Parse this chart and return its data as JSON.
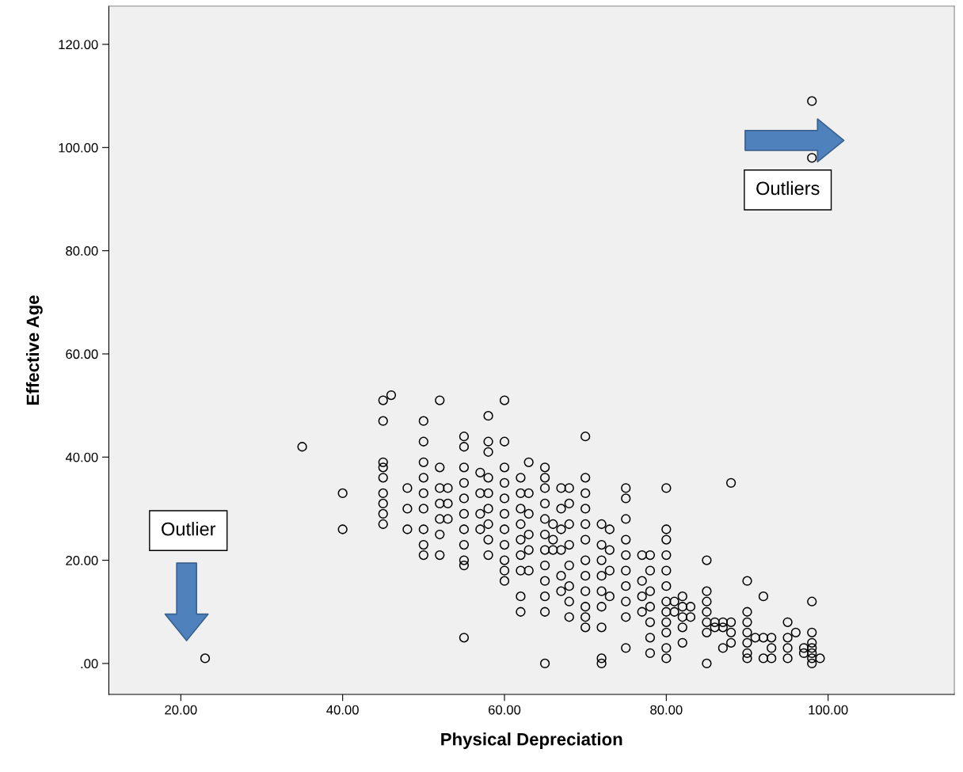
{
  "chart_data": {
    "type": "scatter",
    "xlabel": "Physical Depreciation",
    "ylabel": "Effective Age",
    "xlim": [
      11.1,
      115.6
    ],
    "ylim": [
      -6,
      127.4
    ],
    "xticks": [
      {
        "value": 20,
        "label": "20.00"
      },
      {
        "value": 40,
        "label": "40.00"
      },
      {
        "value": 60,
        "label": "60.00"
      },
      {
        "value": 80,
        "label": "80.00"
      },
      {
        "value": 100,
        "label": "100.00"
      }
    ],
    "yticks": [
      {
        "value": 0,
        "label": ".00"
      },
      {
        "value": 20,
        "label": "20.00"
      },
      {
        "value": 40,
        "label": "40.00"
      },
      {
        "value": 60,
        "label": "60.00"
      },
      {
        "value": 80,
        "label": "80.00"
      },
      {
        "value": 100,
        "label": "100.00"
      },
      {
        "value": 120,
        "label": "120.00"
      }
    ],
    "grid": false,
    "marker": "circle",
    "annotations": [
      "Outliers",
      "Outlier"
    ],
    "series": [
      {
        "color": "#000000",
        "x": [
          23,
          35,
          40,
          40,
          45,
          45,
          45,
          45,
          45,
          45,
          45,
          45,
          45,
          46,
          48,
          48,
          48,
          50,
          50,
          50,
          50,
          50,
          50,
          50,
          50,
          50,
          52,
          52,
          52,
          52,
          52,
          52,
          52,
          53,
          53,
          53,
          55,
          55,
          55,
          55,
          55,
          55,
          55,
          55,
          55,
          55,
          55,
          57,
          57,
          57,
          57,
          58,
          58,
          58,
          58,
          58,
          58,
          58,
          58,
          58,
          60,
          60,
          60,
          60,
          60,
          60,
          60,
          60,
          60,
          60,
          60,
          62,
          62,
          62,
          62,
          62,
          62,
          62,
          62,
          62,
          63,
          63,
          63,
          63,
          63,
          63,
          65,
          65,
          65,
          65,
          65,
          65,
          65,
          65,
          65,
          65,
          65,
          65,
          66,
          66,
          66,
          67,
          67,
          67,
          67,
          67,
          67,
          68,
          68,
          68,
          68,
          68,
          68,
          68,
          68,
          70,
          70,
          70,
          70,
          70,
          70,
          70,
          70,
          70,
          70,
          70,
          70,
          72,
          72,
          72,
          72,
          72,
          72,
          72,
          72,
          72,
          73,
          73,
          73,
          73,
          75,
          75,
          75,
          75,
          75,
          75,
          75,
          75,
          75,
          75,
          77,
          77,
          77,
          77,
          78,
          78,
          78,
          78,
          78,
          78,
          78,
          80,
          80,
          80,
          80,
          80,
          80,
          80,
          80,
          80,
          80,
          80,
          80,
          81,
          81,
          82,
          82,
          82,
          82,
          82,
          83,
          83,
          85,
          85,
          85,
          85,
          85,
          85,
          85,
          86,
          86,
          87,
          87,
          87,
          88,
          88,
          88,
          88,
          90,
          90,
          90,
          90,
          90,
          90,
          90,
          91,
          92,
          92,
          92,
          93,
          93,
          93,
          95,
          95,
          95,
          95,
          96,
          97,
          97,
          98,
          98,
          98,
          98,
          98,
          98,
          98,
          98,
          98,
          99
        ],
        "values": [
          1,
          42,
          33,
          26,
          51,
          47,
          39,
          38,
          36,
          33,
          31,
          29,
          27,
          52,
          34,
          30,
          26,
          47,
          43,
          39,
          36,
          33,
          30,
          26,
          23,
          21,
          51,
          38,
          34,
          31,
          28,
          25,
          21,
          34,
          31,
          28,
          44,
          42,
          38,
          35,
          32,
          29,
          26,
          23,
          20,
          19,
          5,
          37,
          33,
          29,
          26,
          48,
          43,
          41,
          36,
          33,
          30,
          27,
          24,
          21,
          51,
          43,
          38,
          35,
          32,
          29,
          26,
          23,
          20,
          18,
          16,
          36,
          33,
          30,
          27,
          24,
          21,
          18,
          13,
          10,
          39,
          33,
          29,
          25,
          22,
          18,
          38,
          36,
          34,
          31,
          28,
          25,
          22,
          19,
          16,
          13,
          10,
          0,
          27,
          24,
          22,
          34,
          30,
          26,
          22,
          17,
          14,
          34,
          31,
          27,
          23,
          19,
          15,
          12,
          9,
          44,
          36,
          33,
          30,
          27,
          24,
          20,
          17,
          14,
          11,
          9,
          7,
          27,
          23,
          20,
          17,
          14,
          11,
          7,
          1,
          0,
          26,
          22,
          18,
          13,
          34,
          32,
          28,
          24,
          21,
          18,
          15,
          12,
          9,
          3,
          21,
          16,
          13,
          10,
          21,
          18,
          14,
          11,
          8,
          5,
          2,
          34,
          26,
          24,
          21,
          18,
          15,
          12,
          10,
          8,
          6,
          3,
          1,
          12,
          10,
          13,
          11,
          9,
          7,
          4,
          11,
          9,
          20,
          14,
          12,
          10,
          8,
          6,
          0,
          8,
          7,
          8,
          7,
          3,
          35,
          8,
          6,
          4,
          16,
          10,
          8,
          6,
          4,
          2,
          1,
          5,
          13,
          5,
          1,
          5,
          3,
          1,
          8,
          5,
          3,
          1,
          6,
          3,
          2,
          109,
          98,
          12,
          6,
          4,
          3,
          2,
          1,
          0,
          1
        ]
      }
    ]
  }
}
